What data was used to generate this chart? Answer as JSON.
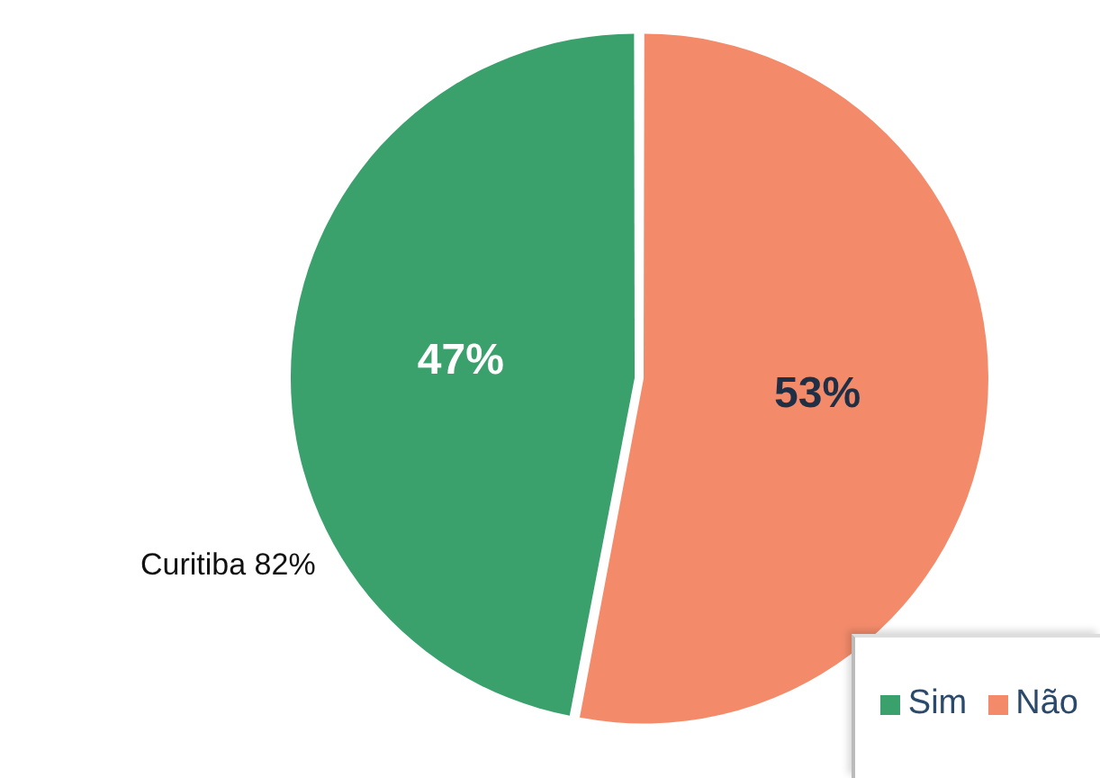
{
  "chart_data": {
    "type": "pie",
    "categories": [
      "Sim",
      "Não"
    ],
    "values": [
      47,
      53
    ],
    "colors": [
      "#3aa06c",
      "#f38b6b"
    ],
    "value_labels": [
      "47%",
      "53%"
    ],
    "legend": "bottom right",
    "annotations": [
      "Curitiba 82%"
    ]
  }
}
